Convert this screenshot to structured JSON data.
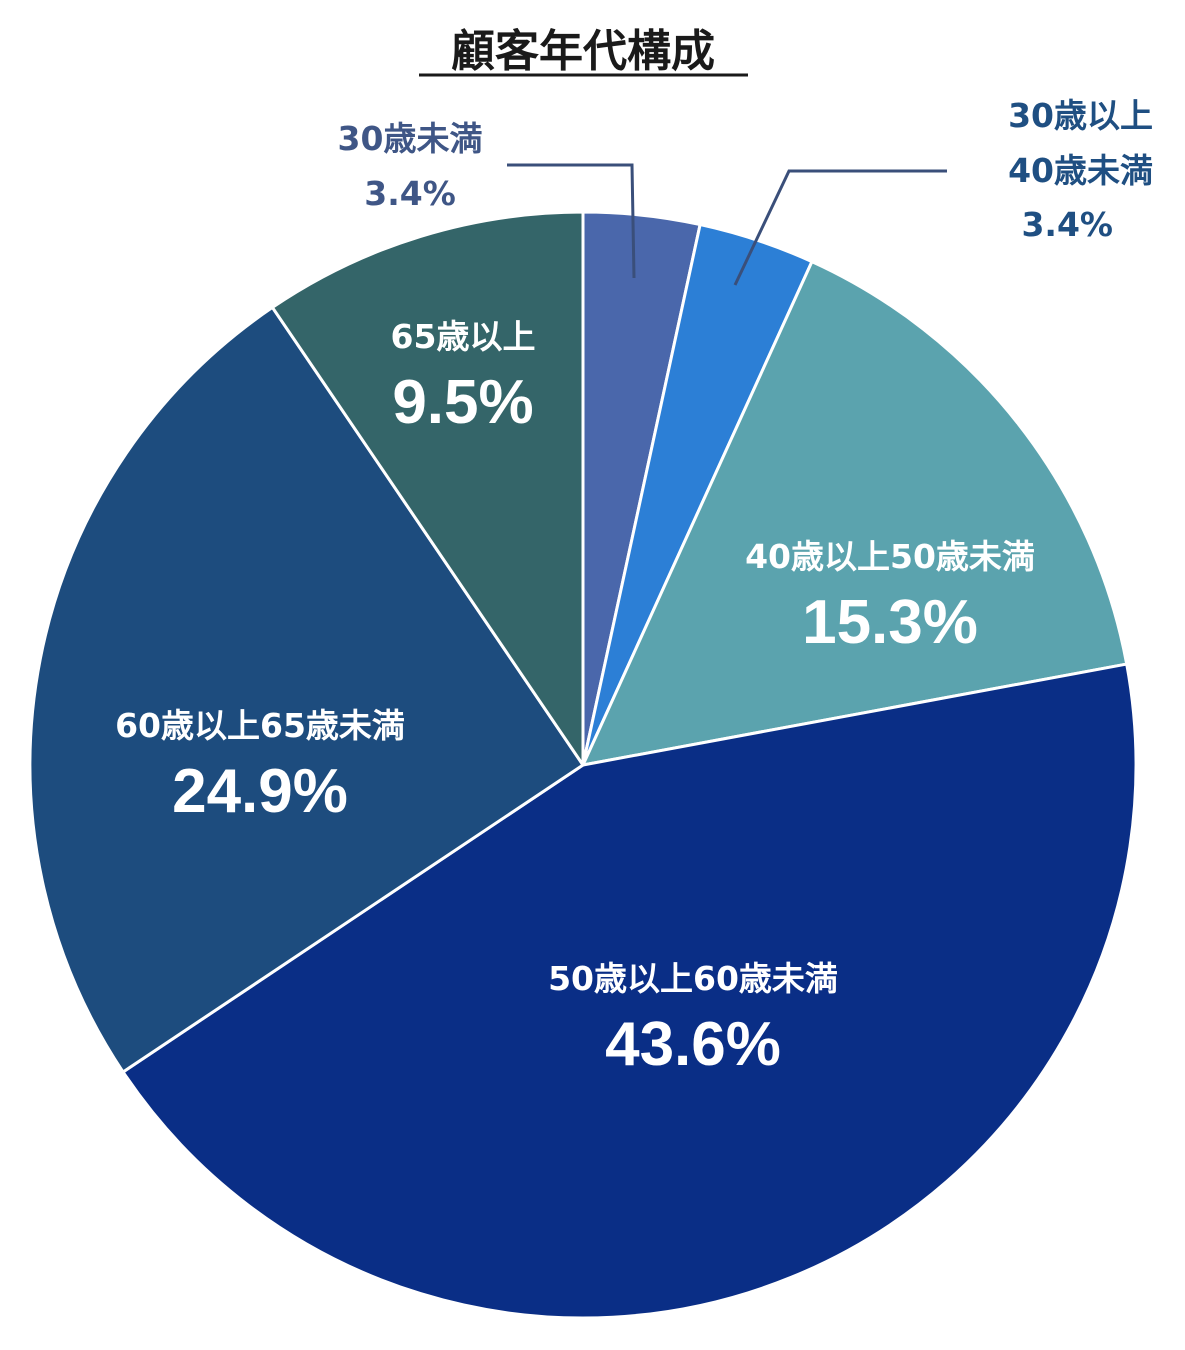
{
  "chart_data": {
    "type": "pie",
    "title": "顧客年代構成",
    "start": "12 o'clock",
    "direction": "clockwise",
    "slices": [
      {
        "label": "30歳未満",
        "value": 3.4,
        "value_label": "3.4%",
        "color": "#4a67ab",
        "label_position": "outside-top-left"
      },
      {
        "label": "30歳以上40歳未満",
        "lines": [
          "30歳以上",
          "40歳未満"
        ],
        "value": 3.4,
        "value_label": "3.4%",
        "color": "#2c7fd6",
        "label_position": "outside-top-right"
      },
      {
        "label": "40歳以上50歳未満",
        "value": 15.3,
        "value_label": "15.3%",
        "color": "#5ba3ae",
        "label_position": "inside"
      },
      {
        "label": "50歳以上60歳未満",
        "value": 43.6,
        "value_label": "43.6%",
        "color": "#0a2e86",
        "label_position": "inside"
      },
      {
        "label": "60歳以上65歳未満",
        "value": 24.9,
        "value_label": "24.9%",
        "color": "#1d4c7e",
        "label_position": "inside"
      },
      {
        "label": "65歳以上",
        "value": 9.5,
        "value_label": "9.5%",
        "color": "#346569",
        "label_position": "inside"
      }
    ],
    "colors": {
      "slice_border": "#ffffff",
      "outside_label_1": "#3f5686",
      "outside_label_2": "#1f4f82",
      "leader_line": "#3a4f7a",
      "title": "#1a1a1a"
    }
  }
}
